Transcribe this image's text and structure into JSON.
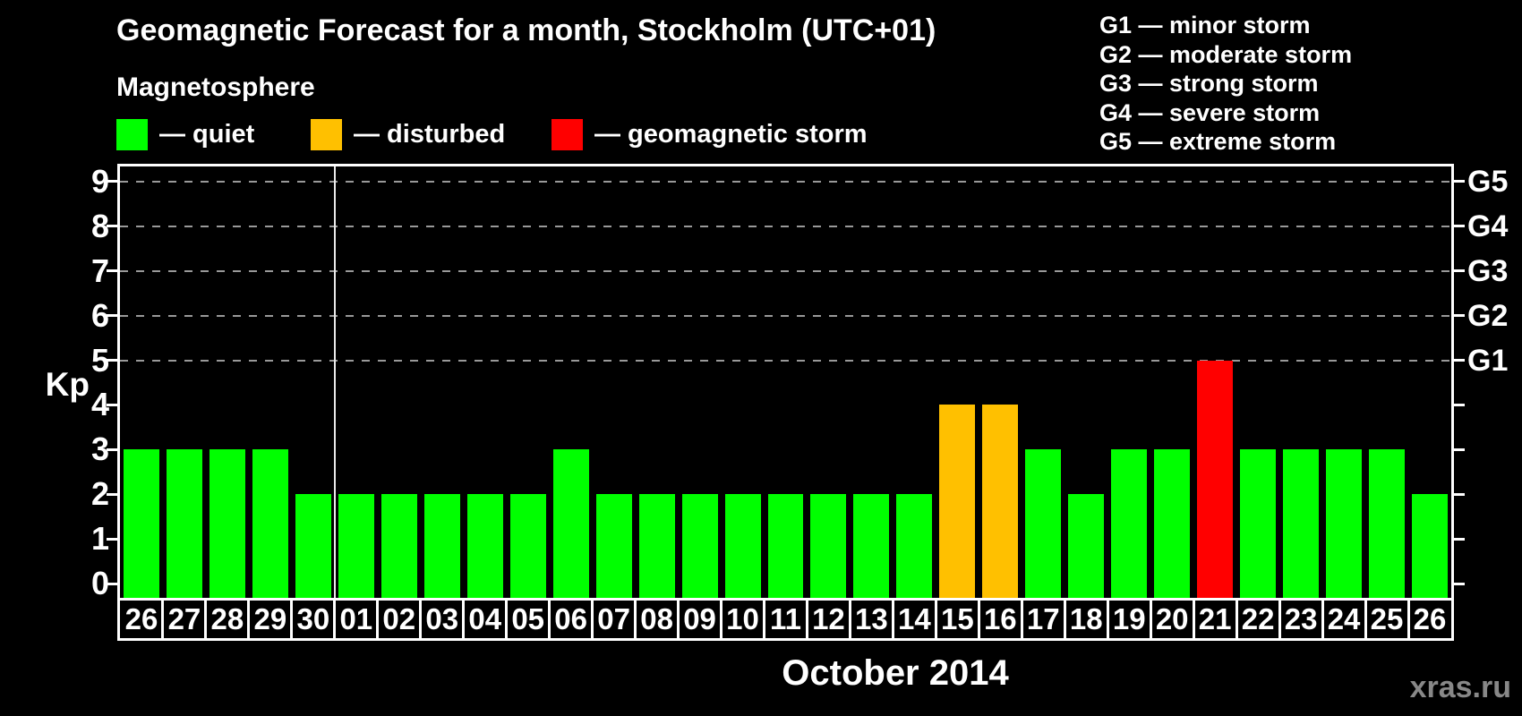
{
  "title": "Geomagnetic Forecast for a month, Stockholm (UTC+01)",
  "subtitle": "Magnetosphere",
  "colors": {
    "background": "#000000",
    "axis": "#ffffff",
    "grid": "#999999",
    "quiet": "#00ff00",
    "disturbed": "#ffc000",
    "storm": "#ff0000",
    "watermark": "#888888"
  },
  "legend": {
    "items": [
      {
        "key": "quiet",
        "label": "— quiet",
        "color_key": "quiet",
        "x": 130
      },
      {
        "key": "disturbed",
        "label": "— disturbed",
        "color_key": "disturbed",
        "x": 347
      },
      {
        "key": "storm",
        "label": "— geomagnetic storm",
        "color_key": "storm",
        "x": 616
      }
    ]
  },
  "g_legend": [
    "G1 — minor storm",
    "G2 — moderate storm",
    "G3 — strong storm",
    "G4 — severe storm",
    "G5 — extreme storm"
  ],
  "axis": {
    "kp_label": "Kp",
    "left_ticks": [
      0,
      1,
      2,
      3,
      4,
      5,
      6,
      7,
      8,
      9
    ],
    "right_labels": [
      {
        "kp": 5,
        "label": "G1"
      },
      {
        "kp": 6,
        "label": "G2"
      },
      {
        "kp": 7,
        "label": "G3"
      },
      {
        "kp": 8,
        "label": "G4"
      },
      {
        "kp": 9,
        "label": "G5"
      }
    ],
    "month_label": "October 2014"
  },
  "watermark": "xras.ru",
  "chart_data": {
    "type": "bar",
    "title": "Geomagnetic Forecast for a month, Stockholm (UTC+01)",
    "xlabel": "October 2014",
    "ylabel": "Kp",
    "ylim": [
      0,
      9
    ],
    "gridlines_at": [
      5,
      6,
      7,
      8,
      9
    ],
    "legend_position": "top",
    "month_separator_after_index": 4,
    "x_categories": [
      "26",
      "27",
      "28",
      "29",
      "30",
      "01",
      "02",
      "03",
      "04",
      "05",
      "06",
      "07",
      "08",
      "09",
      "10",
      "11",
      "12",
      "13",
      "14",
      "15",
      "16",
      "17",
      "18",
      "19",
      "20",
      "21",
      "22",
      "23",
      "24",
      "25",
      "26"
    ],
    "values": [
      3,
      3,
      3,
      3,
      2,
      2,
      2,
      2,
      2,
      2,
      3,
      2,
      2,
      2,
      2,
      2,
      2,
      2,
      2,
      4,
      4,
      3,
      2,
      3,
      3,
      5,
      3,
      3,
      3,
      3,
      2
    ],
    "statuses": [
      "quiet",
      "quiet",
      "quiet",
      "quiet",
      "quiet",
      "quiet",
      "quiet",
      "quiet",
      "quiet",
      "quiet",
      "quiet",
      "quiet",
      "quiet",
      "quiet",
      "quiet",
      "quiet",
      "quiet",
      "quiet",
      "quiet",
      "disturbed",
      "disturbed",
      "quiet",
      "quiet",
      "quiet",
      "quiet",
      "storm",
      "quiet",
      "quiet",
      "quiet",
      "quiet",
      "quiet"
    ]
  }
}
